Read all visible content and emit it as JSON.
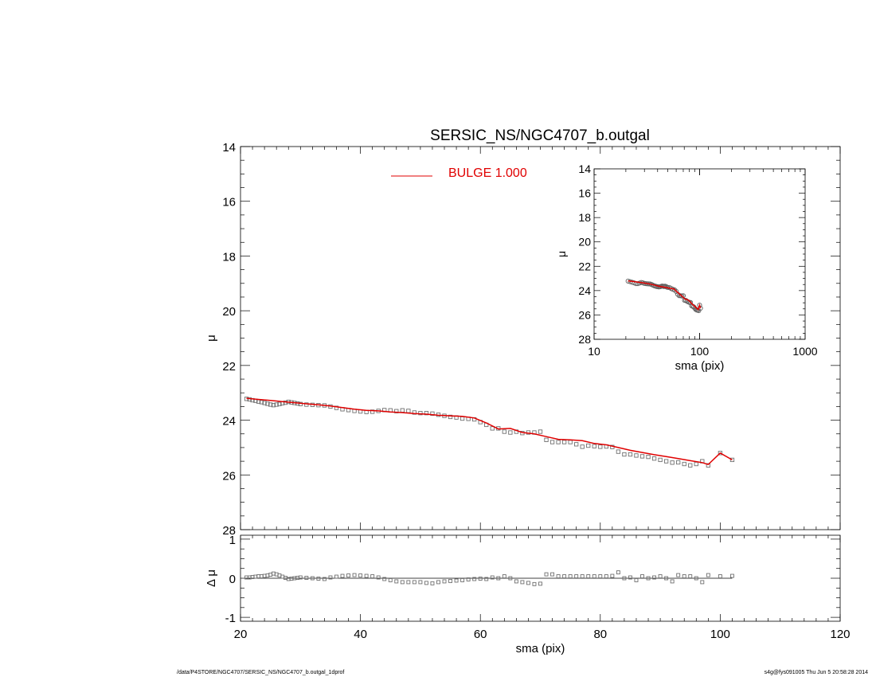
{
  "footer": {
    "path": "/data/P4STORE/NGC4707/SERSIC_NS/NGC4707_b.outgal_1dprof",
    "stamp": "s4g@fys091005  Thu Jun  5 20:58:28 2014"
  },
  "chart_data": [
    {
      "id": "main",
      "type": "line",
      "title": "SERSIC_NS/NGC4707_b.outgal",
      "xlabel": "",
      "ylabel": "μ",
      "xlim": [
        20,
        120
      ],
      "ylim": [
        28,
        14
      ],
      "y_inverted": true,
      "yticks": [
        14,
        16,
        18,
        20,
        22,
        24,
        26,
        28
      ],
      "grid": false,
      "legend": {
        "position": "top-center",
        "entries": [
          {
            "label": "BULGE  1.000",
            "color": "#e00000"
          }
        ]
      },
      "series": [
        {
          "name": "data",
          "style": "open-square-markers",
          "color": "#707070",
          "x": [
            21,
            21.5,
            22,
            22.5,
            23,
            23.5,
            24,
            24.5,
            25,
            25.5,
            26,
            26.5,
            27,
            27.5,
            28,
            28.5,
            29,
            29.5,
            30,
            31,
            32,
            33,
            34,
            35,
            36,
            37,
            38,
            39,
            40,
            41,
            42,
            43,
            44,
            45,
            46,
            47,
            48,
            49,
            50,
            51,
            52,
            53,
            54,
            55,
            56,
            57,
            58,
            59,
            60,
            61,
            62,
            63,
            64,
            65,
            66,
            67,
            68,
            69,
            70,
            71,
            72,
            73,
            74,
            75,
            76,
            77,
            78,
            79,
            80,
            81,
            82,
            83,
            84,
            85,
            86,
            87,
            88,
            89,
            90,
            91,
            92,
            93,
            94,
            95,
            96,
            97,
            98,
            100,
            102
          ],
          "y": [
            23.22,
            23.24,
            23.27,
            23.29,
            23.32,
            23.34,
            23.37,
            23.4,
            23.43,
            23.45,
            23.43,
            23.41,
            23.38,
            23.36,
            23.33,
            23.35,
            23.37,
            23.39,
            23.41,
            23.43,
            23.44,
            23.45,
            23.46,
            23.5,
            23.55,
            23.6,
            23.63,
            23.66,
            23.68,
            23.7,
            23.69,
            23.66,
            23.63,
            23.64,
            23.67,
            23.64,
            23.66,
            23.72,
            23.74,
            23.74,
            23.76,
            23.8,
            23.84,
            23.88,
            23.9,
            23.94,
            23.95,
            23.97,
            24.07,
            24.17,
            24.3,
            24.3,
            24.42,
            24.45,
            24.42,
            24.47,
            24.45,
            24.45,
            24.42,
            24.72,
            24.8,
            24.8,
            24.8,
            24.8,
            24.88,
            24.97,
            24.93,
            24.95,
            24.97,
            24.96,
            24.98,
            25.15,
            25.25,
            25.25,
            25.29,
            25.32,
            25.34,
            25.4,
            25.45,
            25.5,
            25.55,
            25.54,
            25.6,
            25.65,
            25.6,
            25.5,
            25.65,
            25.2,
            25.45
          ]
        },
        {
          "name": "BULGE  1.000",
          "style": "line",
          "color": "#e00000",
          "x": [
            21,
            23,
            25,
            27,
            29,
            31,
            33,
            35,
            37,
            39,
            41,
            43,
            45,
            47,
            49,
            51,
            53,
            55,
            57,
            59,
            61,
            63,
            65,
            67,
            69,
            71,
            73,
            75,
            77,
            79,
            81,
            83,
            85,
            87,
            89,
            91,
            93,
            95,
            97,
            98,
            100,
            102
          ],
          "y": [
            23.2,
            23.24,
            23.28,
            23.32,
            23.36,
            23.4,
            23.44,
            23.48,
            23.54,
            23.6,
            23.64,
            23.66,
            23.7,
            23.72,
            23.76,
            23.78,
            23.82,
            23.84,
            23.86,
            23.92,
            24.1,
            24.32,
            24.3,
            24.45,
            24.5,
            24.6,
            24.7,
            24.72,
            24.75,
            24.85,
            24.9,
            25.0,
            25.1,
            25.18,
            25.26,
            25.33,
            25.4,
            25.48,
            25.55,
            25.62,
            25.2,
            25.45
          ]
        }
      ]
    },
    {
      "id": "residual",
      "type": "scatter",
      "xlabel": "sma (pix)",
      "ylabel": "Δ μ",
      "xlim": [
        20,
        120
      ],
      "ylim": [
        -1.1,
        1.1
      ],
      "yticks": [
        -1,
        0,
        1
      ],
      "xticks": [
        20,
        40,
        60,
        80,
        100,
        120
      ],
      "grid": false,
      "series": [
        {
          "name": "residual",
          "style": "open-square-markers",
          "color": "#707070",
          "x": [
            21,
            21.5,
            22,
            22.5,
            23,
            23.5,
            24,
            24.5,
            25,
            25.5,
            26,
            26.5,
            27,
            27.5,
            28,
            28.5,
            29,
            29.5,
            30,
            31,
            32,
            33,
            34,
            35,
            36,
            37,
            38,
            39,
            40,
            41,
            42,
            43,
            44,
            45,
            46,
            47,
            48,
            49,
            50,
            51,
            52,
            53,
            54,
            55,
            56,
            57,
            58,
            59,
            60,
            61,
            62,
            63,
            64,
            65,
            66,
            67,
            68,
            69,
            70,
            71,
            72,
            73,
            74,
            75,
            76,
            77,
            78,
            79,
            80,
            81,
            82,
            83,
            84,
            85,
            86,
            87,
            88,
            89,
            90,
            91,
            92,
            93,
            94,
            95,
            96,
            97,
            98,
            100,
            102
          ],
          "y": [
            0.02,
            0.02,
            0.03,
            0.04,
            0.05,
            0.05,
            0.06,
            0.07,
            0.09,
            0.12,
            0.1,
            0.07,
            0.04,
            0.01,
            -0.02,
            -0.01,
            0.0,
            0.01,
            0.02,
            0.01,
            0.0,
            -0.01,
            -0.02,
            0.02,
            0.04,
            0.06,
            0.07,
            0.08,
            0.07,
            0.06,
            0.05,
            0.02,
            -0.02,
            -0.05,
            -0.08,
            -0.1,
            -0.1,
            -0.1,
            -0.1,
            -0.12,
            -0.13,
            -0.1,
            -0.08,
            -0.07,
            -0.06,
            -0.05,
            -0.03,
            -0.02,
            -0.01,
            -0.02,
            0.02,
            0.0,
            0.05,
            0.0,
            -0.08,
            -0.1,
            -0.12,
            -0.15,
            -0.14,
            0.1,
            0.1,
            0.05,
            0.05,
            0.05,
            0.05,
            0.05,
            0.05,
            0.05,
            0.05,
            0.05,
            0.06,
            0.15,
            0.0,
            0.02,
            -0.05,
            0.05,
            0.0,
            0.02,
            0.05,
            0.0,
            -0.08,
            0.08,
            0.05,
            0.05,
            0.0,
            -0.1,
            0.08,
            0.05,
            0.06
          ]
        }
      ]
    },
    {
      "id": "inset",
      "type": "scatter",
      "xlabel": "sma (pix)",
      "ylabel": "μ",
      "xscale": "log",
      "xlim": [
        10,
        1000
      ],
      "xticks": [
        10,
        100,
        1000
      ],
      "ylim": [
        28,
        14
      ],
      "y_inverted": true,
      "yticks": [
        14,
        16,
        18,
        20,
        22,
        24,
        26,
        28
      ],
      "grid": false,
      "series": [
        {
          "name": "data",
          "style": "open-circle-markers",
          "color": "#606060",
          "x": [
            21,
            22,
            23,
            24,
            25,
            26,
            27,
            28,
            29,
            30,
            31,
            32,
            33,
            34,
            35,
            36,
            37,
            38,
            39,
            40,
            41,
            42,
            43,
            44,
            45,
            46,
            47,
            48,
            49,
            50,
            52,
            54,
            56,
            58,
            60,
            62,
            64,
            66,
            68,
            70,
            72,
            74,
            76,
            78,
            80,
            82,
            84,
            86,
            88,
            90,
            92,
            94,
            96,
            98,
            100,
            102
          ],
          "y": [
            23.22,
            23.27,
            23.32,
            23.37,
            23.43,
            23.43,
            23.38,
            23.33,
            23.37,
            23.41,
            23.43,
            23.44,
            23.45,
            23.46,
            23.5,
            23.55,
            23.6,
            23.63,
            23.66,
            23.68,
            23.7,
            23.69,
            23.66,
            23.63,
            23.64,
            23.67,
            23.64,
            23.66,
            23.72,
            23.74,
            23.76,
            23.84,
            23.9,
            23.95,
            24.07,
            24.3,
            24.42,
            24.42,
            24.45,
            24.42,
            24.8,
            24.8,
            24.88,
            24.93,
            24.97,
            24.98,
            25.25,
            25.29,
            25.34,
            25.45,
            25.55,
            25.6,
            25.6,
            25.65,
            25.2,
            25.45
          ]
        },
        {
          "name": "BULGE  1.000",
          "style": "line",
          "color": "#e00000",
          "x": [
            21,
            25,
            29,
            33,
            37,
            41,
            45,
            49,
            53,
            57,
            61,
            65,
            69,
            73,
            77,
            81,
            85,
            89,
            93,
            97,
            100,
            102
          ],
          "y": [
            23.2,
            23.28,
            23.36,
            23.44,
            23.54,
            23.64,
            23.7,
            23.76,
            23.82,
            23.86,
            24.1,
            24.3,
            24.5,
            24.7,
            24.75,
            24.9,
            25.1,
            25.26,
            25.4,
            25.55,
            25.2,
            25.45
          ]
        }
      ]
    }
  ]
}
